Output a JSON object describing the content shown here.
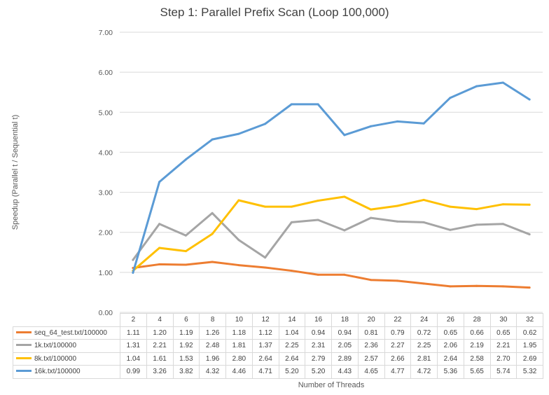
{
  "chart_data": {
    "type": "line",
    "title": "Step 1: Parallel Prefix Scan (Loop 100,000)",
    "xlabel": "Number of Threads",
    "ylabel": "Speedup (Parallel t / Sequential t)",
    "ylim": [
      0,
      7
    ],
    "yticks": [
      "0.00",
      "1.00",
      "2.00",
      "3.00",
      "4.00",
      "5.00",
      "6.00",
      "7.00"
    ],
    "grid": true,
    "legend": "data table below chart",
    "categories": [
      "2",
      "4",
      "6",
      "8",
      "10",
      "12",
      "14",
      "16",
      "18",
      "20",
      "22",
      "24",
      "26",
      "28",
      "30",
      "32"
    ],
    "series": [
      {
        "name": "seq_64_test.txt/100000",
        "color": "#ED7D31",
        "values": [
          1.11,
          1.2,
          1.19,
          1.26,
          1.18,
          1.12,
          1.04,
          0.94,
          0.94,
          0.81,
          0.79,
          0.72,
          0.65,
          0.66,
          0.65,
          0.62
        ],
        "labels": [
          "1.11",
          "1.20",
          "1.19",
          "1.26",
          "1.18",
          "1.12",
          "1.04",
          "0.94",
          "0.94",
          "0.81",
          "0.79",
          "0.72",
          "0.65",
          "0.66",
          "0.65",
          "0.62"
        ]
      },
      {
        "name": "1k.txt/100000",
        "color": "#A5A5A5",
        "values": [
          1.31,
          2.21,
          1.92,
          2.48,
          1.81,
          1.37,
          2.25,
          2.31,
          2.05,
          2.36,
          2.27,
          2.25,
          2.06,
          2.19,
          2.21,
          1.95
        ],
        "labels": [
          "1.31",
          "2.21",
          "1.92",
          "2.48",
          "1.81",
          "1.37",
          "2.25",
          "2.31",
          "2.05",
          "2.36",
          "2.27",
          "2.25",
          "2.06",
          "2.19",
          "2.21",
          "1.95"
        ]
      },
      {
        "name": "8k.txt/100000",
        "color": "#FFC000",
        "values": [
          1.04,
          1.61,
          1.53,
          1.96,
          2.8,
          2.64,
          2.64,
          2.79,
          2.89,
          2.57,
          2.66,
          2.81,
          2.64,
          2.58,
          2.7,
          2.69
        ],
        "labels": [
          "1.04",
          "1.61",
          "1.53",
          "1.96",
          "2.80",
          "2.64",
          "2.64",
          "2.79",
          "2.89",
          "2.57",
          "2.66",
          "2.81",
          "2.64",
          "2.58",
          "2.70",
          "2.69"
        ]
      },
      {
        "name": "16k.txt/100000",
        "color": "#5B9BD5",
        "values": [
          0.99,
          3.26,
          3.82,
          4.32,
          4.46,
          4.71,
          5.2,
          5.2,
          4.43,
          4.65,
          4.77,
          4.72,
          5.36,
          5.65,
          5.74,
          5.32
        ],
        "labels": [
          "0.99",
          "3.26",
          "3.82",
          "4.32",
          "4.46",
          "4.71",
          "5.20",
          "5.20",
          "4.43",
          "4.65",
          "4.77",
          "4.72",
          "5.36",
          "5.65",
          "5.74",
          "5.32"
        ]
      }
    ]
  }
}
